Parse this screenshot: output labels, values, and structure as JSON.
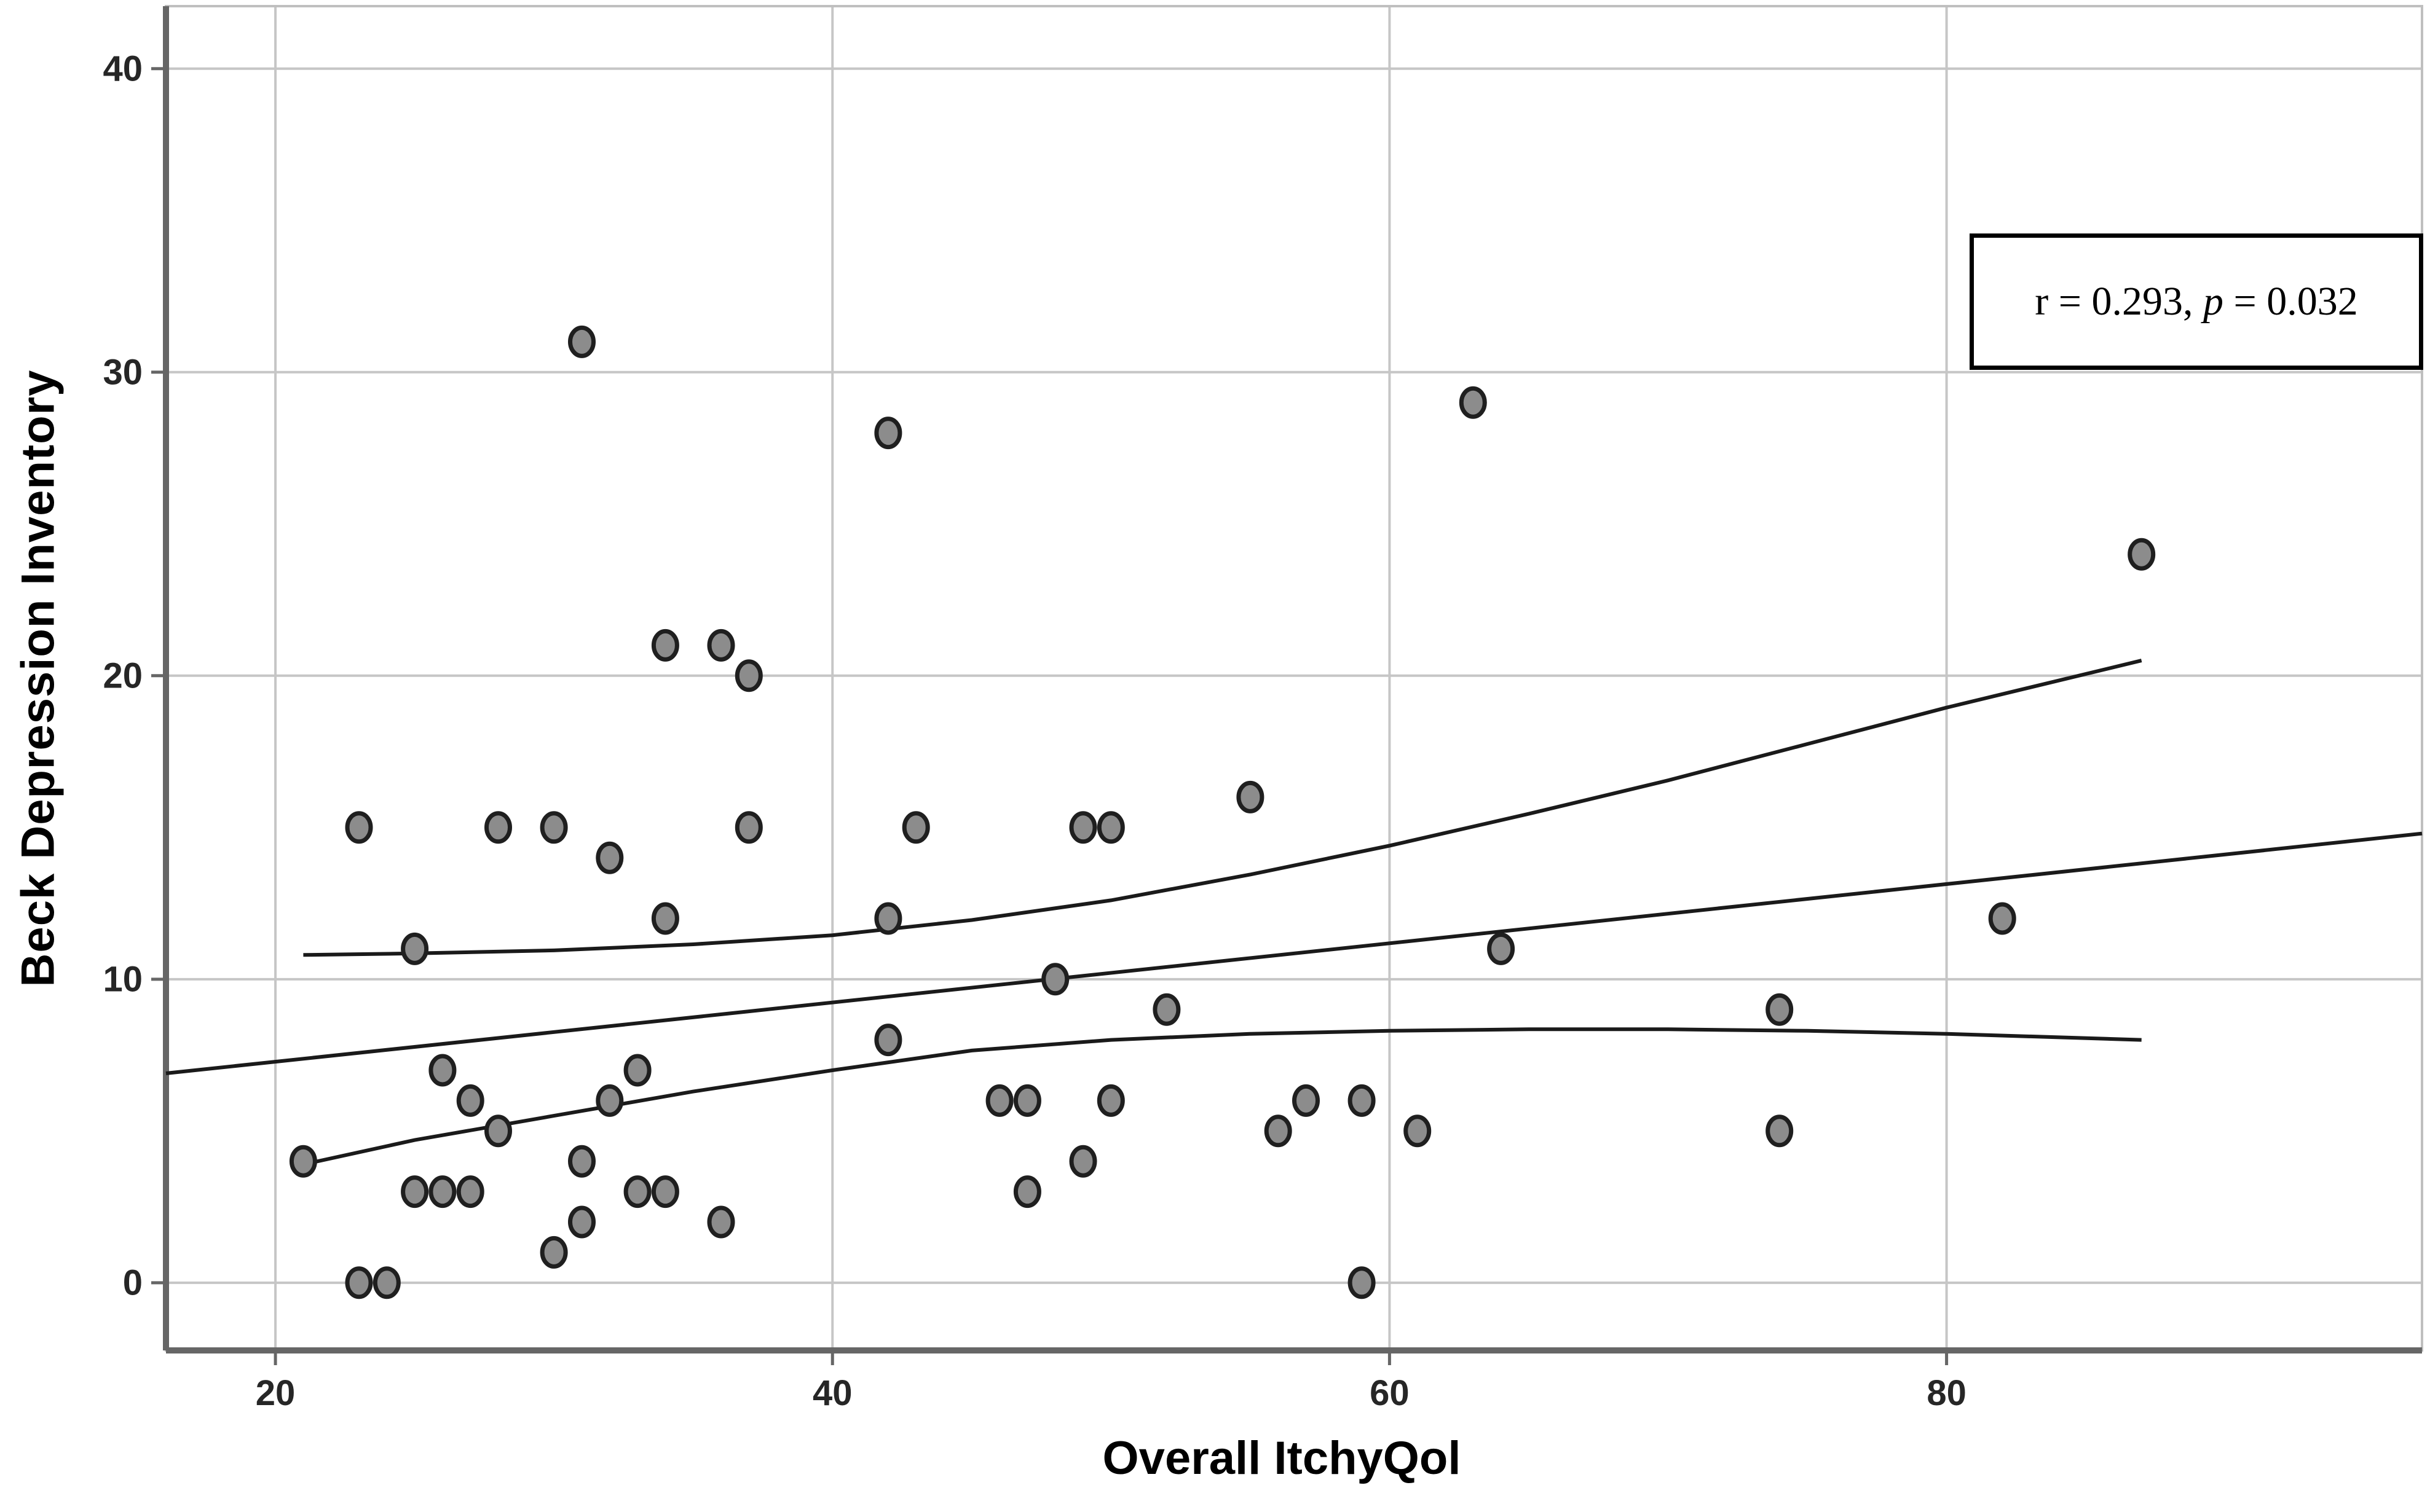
{
  "annotation": {
    "prefix": "r = 0.293, ",
    "p_symbol": "p",
    "suffix": " = 0.032"
  },
  "chart_data": {
    "type": "scatter",
    "title": "",
    "x_label": "Overall ItchyQol",
    "y_label": "Beck Depression Inventory",
    "x_ticks": [
      20,
      40,
      60,
      80
    ],
    "y_ticks": [
      0,
      10,
      20,
      30,
      40
    ],
    "x_range": [
      16.07,
      97.07
    ],
    "y_range": [
      -2.23,
      42.06
    ],
    "grid": true,
    "legend": "none",
    "stats": {
      "r": 0.293,
      "p": 0.032,
      "n": 53
    },
    "points": [
      [
        21,
        4
      ],
      [
        23,
        0
      ],
      [
        23,
        15
      ],
      [
        24,
        0
      ],
      [
        25,
        3
      ],
      [
        25,
        11
      ],
      [
        26,
        3
      ],
      [
        26,
        7
      ],
      [
        27,
        3
      ],
      [
        27,
        6
      ],
      [
        28,
        5
      ],
      [
        28,
        15
      ],
      [
        30,
        1
      ],
      [
        30,
        15
      ],
      [
        31,
        2
      ],
      [
        31,
        4
      ],
      [
        31,
        31
      ],
      [
        32,
        6
      ],
      [
        32,
        14
      ],
      [
        33,
        3
      ],
      [
        33,
        7
      ],
      [
        34,
        3
      ],
      [
        34,
        12
      ],
      [
        34,
        21
      ],
      [
        36,
        2
      ],
      [
        36,
        21
      ],
      [
        37,
        15
      ],
      [
        37,
        20
      ],
      [
        42,
        8
      ],
      [
        42,
        12
      ],
      [
        42,
        28
      ],
      [
        43,
        15
      ],
      [
        46,
        6
      ],
      [
        47,
        3
      ],
      [
        47,
        6
      ],
      [
        48,
        10
      ],
      [
        49,
        4
      ],
      [
        49,
        15
      ],
      [
        50,
        6
      ],
      [
        50,
        15
      ],
      [
        52,
        9
      ],
      [
        55,
        16
      ],
      [
        56,
        5
      ],
      [
        57,
        6
      ],
      [
        59,
        0
      ],
      [
        59,
        6
      ],
      [
        61,
        5
      ],
      [
        63,
        29
      ],
      [
        64,
        11
      ],
      [
        74,
        5
      ],
      [
        74,
        9
      ],
      [
        82,
        12
      ],
      [
        87,
        24
      ]
    ],
    "fit_line": [
      [
        16.07,
        6.9
      ],
      [
        97.07,
        14.8
      ]
    ],
    "upper_band": [
      [
        21,
        10.8
      ],
      [
        25,
        10.85
      ],
      [
        30,
        10.95
      ],
      [
        35,
        11.15
      ],
      [
        40,
        11.45
      ],
      [
        45,
        11.95
      ],
      [
        50,
        12.6
      ],
      [
        55,
        13.45
      ],
      [
        60,
        14.4
      ],
      [
        65,
        15.45
      ],
      [
        70,
        16.55
      ],
      [
        75,
        17.75
      ],
      [
        80,
        18.95
      ],
      [
        87,
        20.5
      ]
    ],
    "lower_band": [
      [
        21,
        3.9
      ],
      [
        25,
        4.7
      ],
      [
        30,
        5.5
      ],
      [
        35,
        6.3
      ],
      [
        40,
        7.0
      ],
      [
        45,
        7.65
      ],
      [
        50,
        8.0
      ],
      [
        55,
        8.2
      ],
      [
        60,
        8.3
      ],
      [
        65,
        8.35
      ],
      [
        70,
        8.35
      ],
      [
        75,
        8.3
      ],
      [
        80,
        8.2
      ],
      [
        87,
        8.0
      ]
    ],
    "colors": {
      "point_fill": "#8c8c8c",
      "point_stroke": "#1f1f1f",
      "line": "#1a1a1a",
      "gridline": "#c6c6c6",
      "frame": "#bfbfbf",
      "axis": "#666666"
    }
  }
}
